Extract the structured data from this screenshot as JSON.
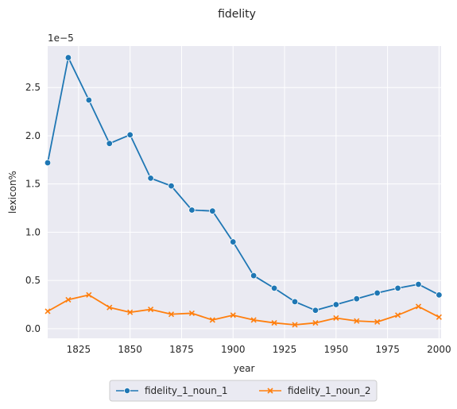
{
  "chart_data": {
    "type": "line",
    "title": "fidelity",
    "xlabel": "year",
    "ylabel": "lexicon%",
    "y_multiplier_label": "1e−5",
    "xlim": [
      1810,
      2001
    ],
    "ylim": [
      -0.1,
      2.93
    ],
    "x_ticks": [
      1825,
      1850,
      1875,
      1900,
      1925,
      1950,
      1975,
      2000
    ],
    "y_ticks": [
      0.0,
      0.5,
      1.0,
      1.5,
      2.0,
      2.5
    ],
    "y_tick_labels": [
      "0.0",
      "0.5",
      "1.0",
      "1.5",
      "2.0",
      "2.5"
    ],
    "grid": true,
    "legend_position": "bottom-center",
    "x": [
      1810,
      1820,
      1830,
      1840,
      1850,
      1860,
      1870,
      1880,
      1890,
      1900,
      1910,
      1920,
      1930,
      1940,
      1950,
      1960,
      1970,
      1980,
      1990,
      2000
    ],
    "series": [
      {
        "name": "fidelity_1_noun_1",
        "color": "#1f77b4",
        "marker": "circle",
        "values": [
          1.72,
          2.81,
          2.37,
          1.92,
          2.01,
          1.56,
          1.48,
          1.23,
          1.22,
          0.9,
          0.55,
          0.42,
          0.28,
          0.19,
          0.25,
          0.31,
          0.37,
          0.42,
          0.46,
          0.35
        ]
      },
      {
        "name": "fidelity_1_noun_2",
        "color": "#ff7f0e",
        "marker": "x",
        "values": [
          0.18,
          0.3,
          0.35,
          0.22,
          0.17,
          0.2,
          0.15,
          0.16,
          0.09,
          0.14,
          0.09,
          0.06,
          0.04,
          0.06,
          0.11,
          0.08,
          0.07,
          0.14,
          0.23,
          0.12
        ]
      }
    ]
  }
}
